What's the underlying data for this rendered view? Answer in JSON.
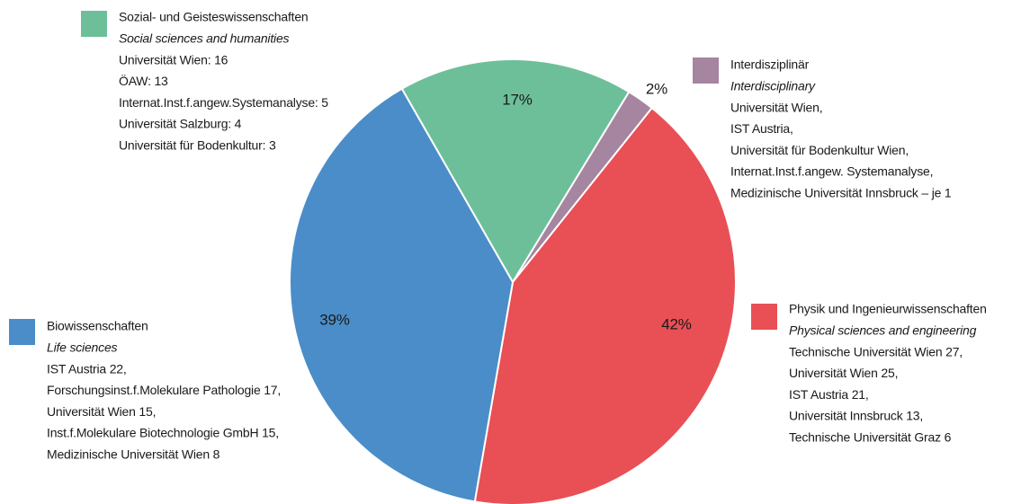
{
  "chart_data": {
    "type": "pie",
    "categories": [
      "Sozial- und Geisteswissenschaften",
      "Interdisziplinär",
      "Physik und Ingenieurwissenschaften",
      "Biowissenschaften"
    ],
    "categories_en": [
      "Social sciences and humanities",
      "Interdisciplinary",
      "Physical sciences and engineering",
      "Life sciences"
    ],
    "values": [
      17,
      2,
      42,
      39
    ],
    "value_labels": [
      "17%",
      "2%",
      "42%",
      "39%"
    ],
    "colors": [
      "#6dbf9a",
      "#a585a0",
      "#e85055",
      "#4a8dc8"
    ],
    "details": [
      [
        "Universität Wien: 16",
        "ÖAW: 13",
        "Internat.Inst.f.angew.Systemanalyse: 5",
        "Universität Salzburg: 4",
        "Universität für Bodenkultur: 3"
      ],
      [
        "Universität Wien,",
        "IST Austria,",
        "Universität für Bodenkultur Wien,",
        "Internat.Inst.f.angew. Systemanalyse,",
        "Medizinische Universität Innsbruck – je 1"
      ],
      [
        "Technische Universität Wien 27,",
        "Universität Wien 25,",
        "IST Austria 21,",
        "Universität Innsbruck 13,",
        "Technische Universität Graz 6"
      ],
      [
        "IST Austria 22,",
        "Forschungsinst.f.Molekulare Pathologie 17,",
        "Universität Wien 15,",
        "Inst.f.Molekulare Biotechnologie GmbH 15,",
        "Medizinische Universität Wien 8"
      ]
    ]
  }
}
